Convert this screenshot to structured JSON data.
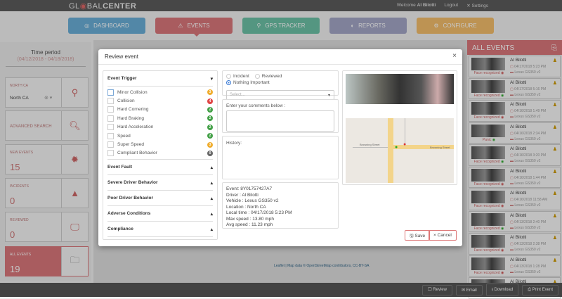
{
  "app": {
    "logo": "GLOBALCENTER",
    "logo_pre": "GL",
    "logo_mid": "BAL",
    "logo_bold": "CENTER",
    "welcome": "Welcome",
    "user": "Al Bilotti",
    "logout": "Logout",
    "settings": "Settings"
  },
  "nav": [
    {
      "label": "DASHBOARD",
      "color": "#6aaed6"
    },
    {
      "label": "EVENTS",
      "color": "#d9777a"
    },
    {
      "label": "GPS TRACKER",
      "color": "#6cc0a6"
    },
    {
      "label": "REPORTS",
      "color": "#a3a6c6"
    },
    {
      "label": "CONFIGURE",
      "color": "#f3bd6b"
    }
  ],
  "sidebar": {
    "time_title": "Time period",
    "time_range": "(04/12/2018 - 04/18/2018)",
    "region_label": "NORTH CA",
    "region_value": "North CA",
    "advanced": "ADVANCED SEARCH",
    "new_events_label": "NEW EVENTS",
    "new_events": "15",
    "incidents_label": "INCIDENTS",
    "incidents": "0",
    "reviewed_label": "REVIEWED",
    "reviewed": "0",
    "all_label": "ALL EVENTS",
    "all": "19"
  },
  "events_panel": {
    "title": "ALL EVENTS",
    "items": [
      {
        "name": "Al Bilotti",
        "date": "04/17/2018 5:23 PM",
        "vehicle": "Lexus GS350 v2",
        "status": "Face recognized"
      },
      {
        "name": "Al Bilotti",
        "date": "04/17/2018 5:16 PM",
        "vehicle": "Lexus GS350 v2",
        "status": "Face recognized"
      },
      {
        "name": "Al Bilotti",
        "date": "04/16/2018 1:49 PM",
        "vehicle": "Lexus GS350 v2",
        "status": "Face recognized"
      },
      {
        "name": "Al Bilotti",
        "date": "04/16/2018 2:34 PM",
        "vehicle": "Lexus GS350 v2",
        "status": "Panic"
      },
      {
        "name": "Al Bilotti",
        "date": "04/16/2018 3:20 PM",
        "vehicle": "Lexus GS350 v2",
        "status": "Face recognized"
      },
      {
        "name": "Al Bilotti",
        "date": "04/16/2018 1:44 PM",
        "vehicle": "Lexus GS350 v2",
        "status": "Face recognized"
      },
      {
        "name": "Al Bilotti",
        "date": "04/16/2018 11:58 AM",
        "vehicle": "Lexus GS350 v2",
        "status": "Face recognized"
      },
      {
        "name": "Al Bilotti",
        "date": "04/13/2018 2:40 PM",
        "vehicle": "Lexus GS350 v2",
        "status": "Face recognized"
      },
      {
        "name": "Al Bilotti",
        "date": "04/13/2018 2:38 PM",
        "vehicle": "Lexus GS350 v2",
        "status": "Face recognized"
      },
      {
        "name": "Al Bilotti",
        "date": "04/13/2018 1:28 PM",
        "vehicle": "Lexus GS350 v2",
        "status": "Face recognized"
      },
      {
        "name": "Al Bilotti",
        "date": "",
        "vehicle": "",
        "status": ""
      }
    ]
  },
  "bottom": {
    "review": "Review",
    "email": "Email",
    "download": "Download",
    "print": "Print Event"
  },
  "map_attribution": "Leaflet | Map data © OpenStreetMap contributors, CC-BY-SA",
  "modal": {
    "title": "Review event",
    "trigger_title": "Event Trigger",
    "triggers": [
      {
        "label": "Minor Collision",
        "count": "3",
        "color": "#f0ad2e"
      },
      {
        "label": "Collision",
        "count": "4",
        "color": "#e04444"
      },
      {
        "label": "Hard Cornering",
        "count": "2",
        "color": "#43a047"
      },
      {
        "label": "Hard Braking",
        "count": "2",
        "color": "#43a047"
      },
      {
        "label": "Hard Acceleration",
        "count": "2",
        "color": "#43a047"
      },
      {
        "label": "Speed",
        "count": "2",
        "color": "#43a047"
      },
      {
        "label": "Super Speed",
        "count": "3",
        "color": "#f0ad2e"
      },
      {
        "label": "Compliant Behavior",
        "count": "0",
        "color": "#666666"
      }
    ],
    "sections": [
      "Event Fault",
      "Severe Driver Behavior",
      "Poor Driver Behavior",
      "Adverse Conditions",
      "Compliance"
    ],
    "radios": [
      {
        "label": "Incident",
        "checked": false
      },
      {
        "label": "Reviewed",
        "checked": false
      },
      {
        "label": "Nothing Important",
        "checked": true
      }
    ],
    "select_placeholder": "Select...",
    "comments_label": "Enter your comments below :",
    "history_label": "History:",
    "info": [
      "Event: 8Y01757427A7",
      "Driver : Al Bilotti",
      "Vehicle : Lexus GS350 v2",
      "Location : North CA",
      "Local time : 04/17/2018 5:23 PM",
      "Max speed : 13.80 mph",
      "Avg speed : 11.23 mph"
    ],
    "map_streets": [
      "Browning Street",
      "Browning Street"
    ],
    "save": "Save",
    "cancel": "Cancel"
  }
}
